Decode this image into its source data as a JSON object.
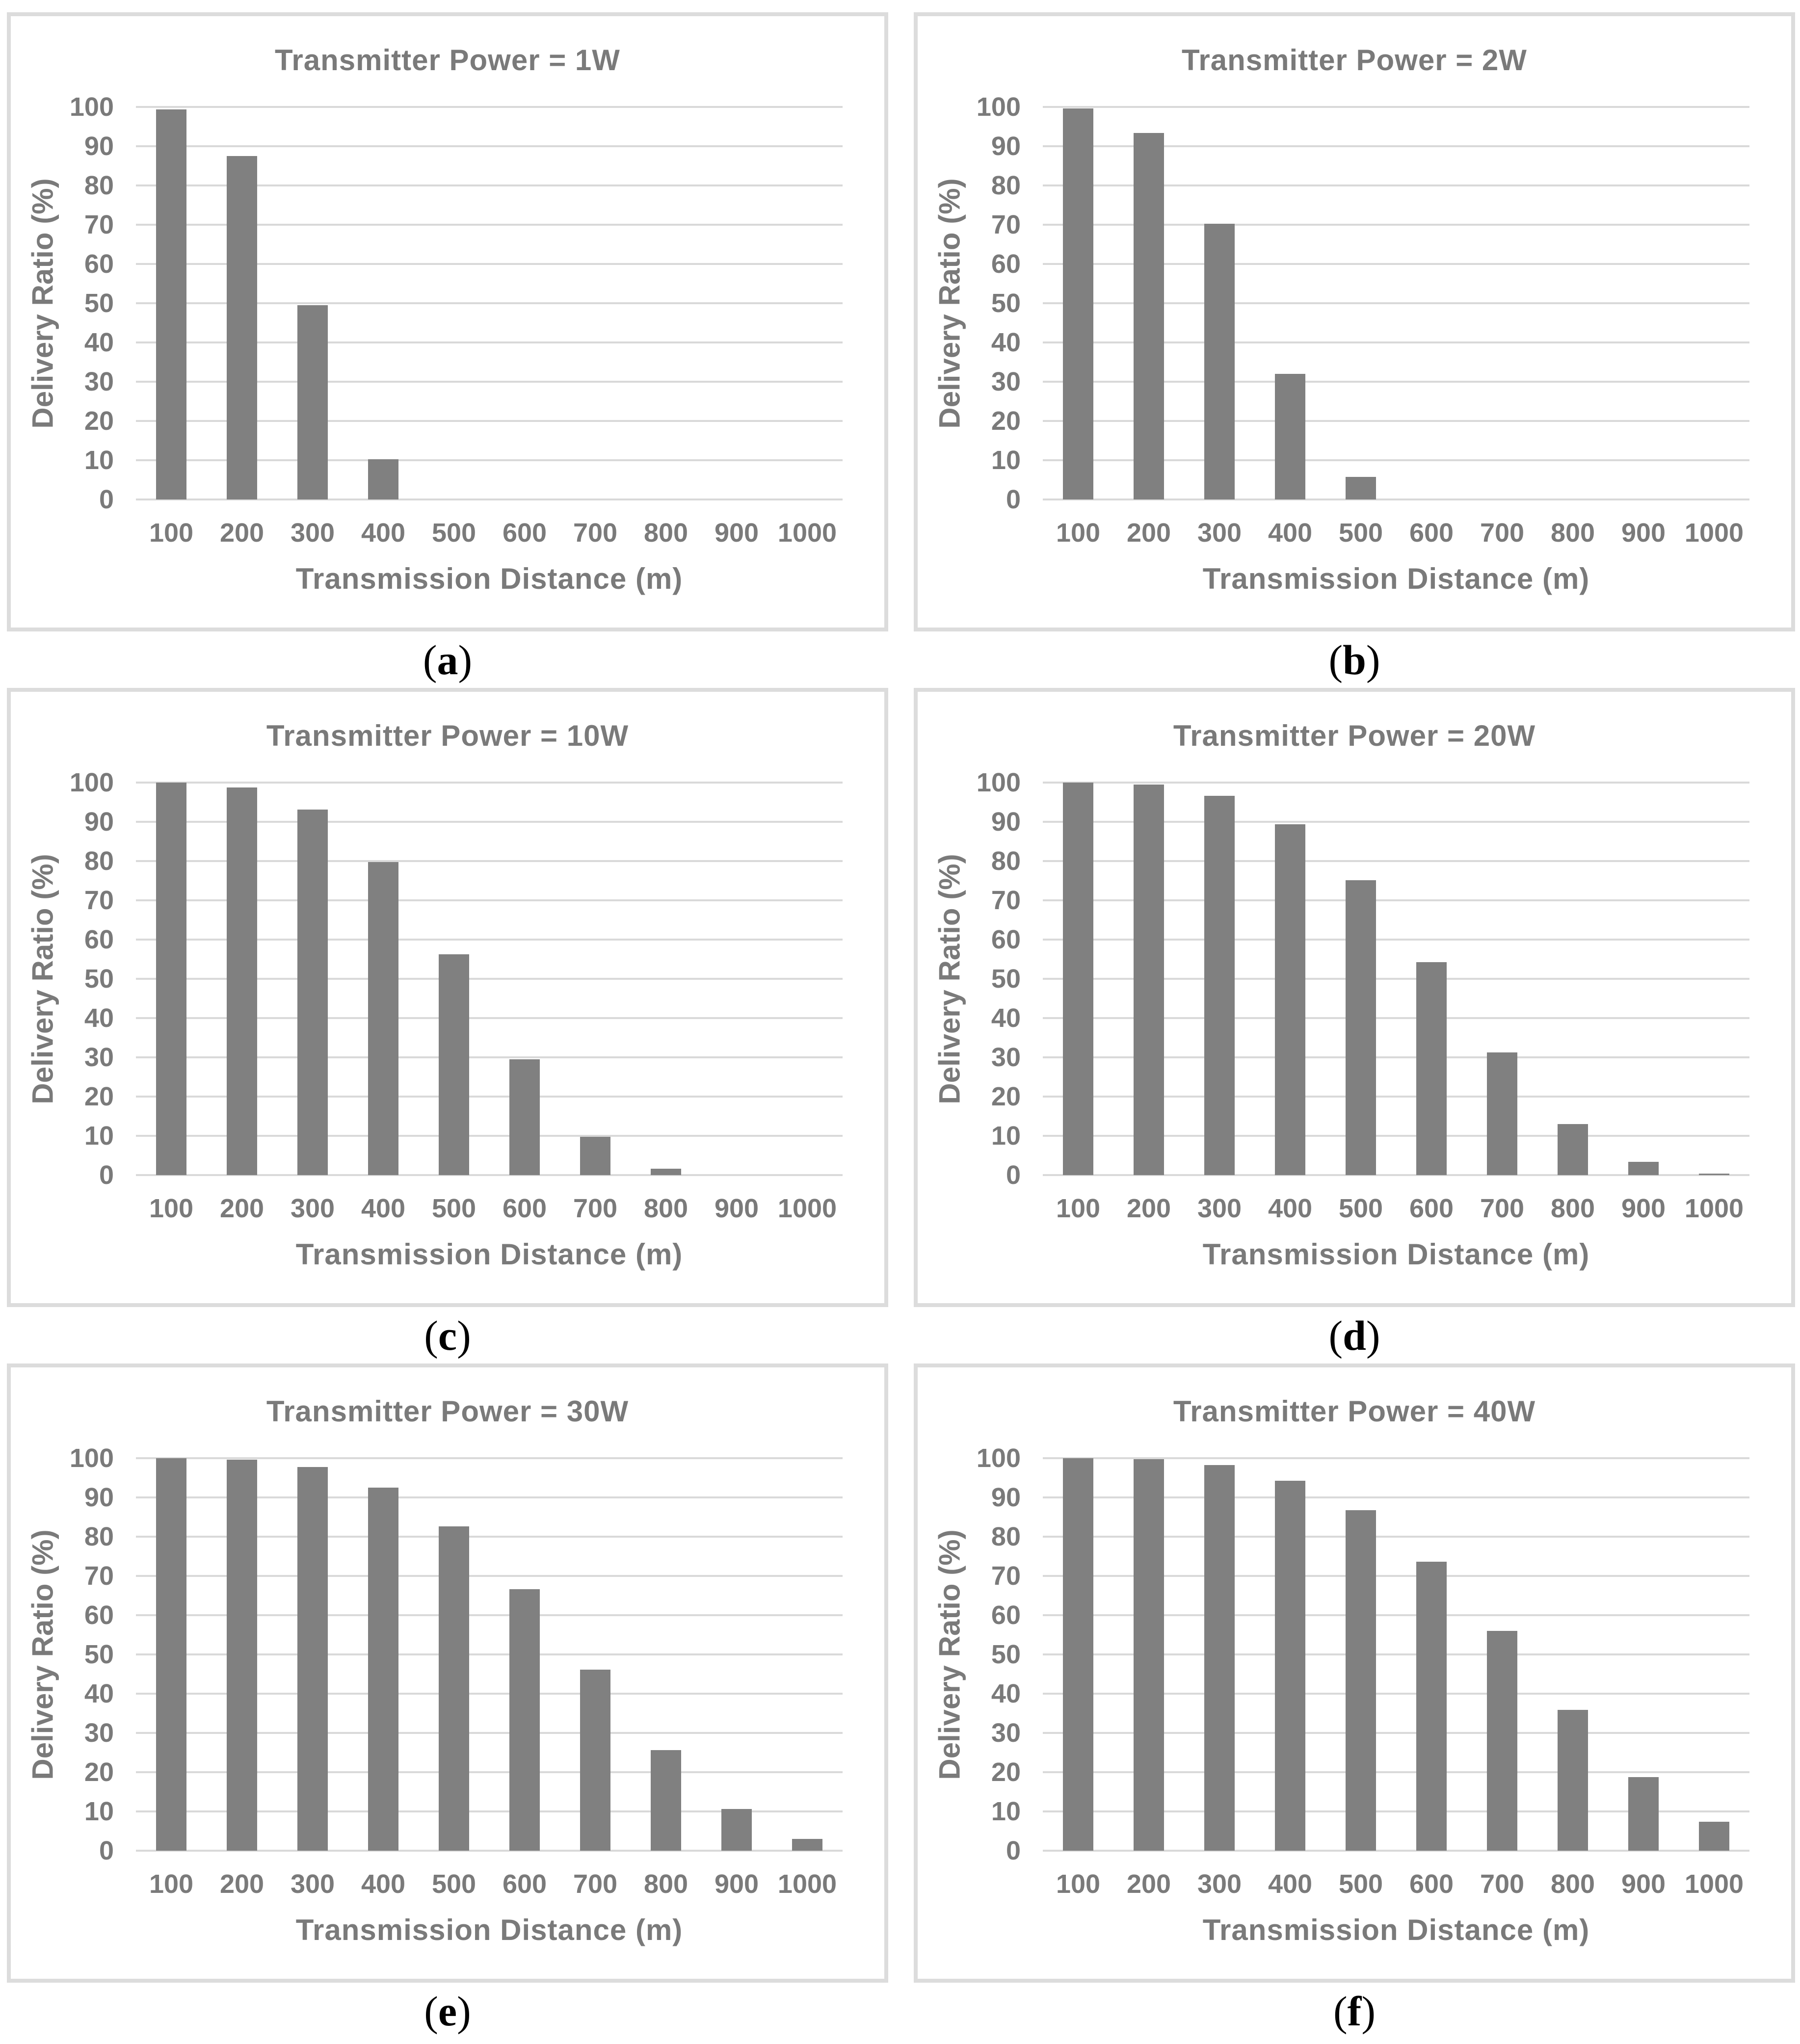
{
  "figure": {
    "caption_prefix": "(",
    "caption_suffix": ")",
    "colors": {
      "bar": "#808080",
      "gridline": "#d9d9d9",
      "axis_text": "#7a7a7a",
      "panel_border": "#dcdcdc",
      "caption_text": "#000000"
    }
  },
  "chart_data": [
    {
      "id": "a",
      "type": "bar",
      "title": "Transmitter Power = 1W",
      "xlabel": "Transmission Distance (m)",
      "ylabel": "Delivery Ratio (%)",
      "categories": [
        "100",
        "200",
        "300",
        "400",
        "500",
        "600",
        "700",
        "800",
        "900",
        "1000"
      ],
      "values": [
        99.4,
        87.5,
        49.5,
        10.2,
        0,
        0,
        0,
        0,
        0,
        0
      ],
      "ylim": [
        0,
        100
      ],
      "yticks": [
        0,
        10,
        20,
        30,
        40,
        50,
        60,
        70,
        80,
        90,
        100
      ],
      "grid": true,
      "legend": "none",
      "caption": "a"
    },
    {
      "id": "b",
      "type": "bar",
      "title": "Transmitter Power = 2W",
      "xlabel": "Transmission Distance (m)",
      "ylabel": "Delivery Ratio (%)",
      "categories": [
        "100",
        "200",
        "300",
        "400",
        "500",
        "600",
        "700",
        "800",
        "900",
        "1000"
      ],
      "values": [
        99.6,
        93.4,
        70.3,
        32.0,
        5.7,
        0,
        0,
        0,
        0,
        0
      ],
      "ylim": [
        0,
        100
      ],
      "yticks": [
        0,
        10,
        20,
        30,
        40,
        50,
        60,
        70,
        80,
        90,
        100
      ],
      "grid": true,
      "legend": "none",
      "caption": "b"
    },
    {
      "id": "c",
      "type": "bar",
      "title": "Transmitter Power = 10W",
      "xlabel": "Transmission Distance (m)",
      "ylabel": "Delivery Ratio (%)",
      "categories": [
        "100",
        "200",
        "300",
        "400",
        "500",
        "600",
        "700",
        "800",
        "900",
        "1000"
      ],
      "values": [
        100,
        98.8,
        93.1,
        79.7,
        56.3,
        29.5,
        9.7,
        1.6,
        0,
        0
      ],
      "ylim": [
        0,
        100
      ],
      "yticks": [
        0,
        10,
        20,
        30,
        40,
        50,
        60,
        70,
        80,
        90,
        100
      ],
      "grid": true,
      "legend": "none",
      "caption": "c"
    },
    {
      "id": "d",
      "type": "bar",
      "title": "Transmitter Power = 20W",
      "xlabel": "Transmission Distance (m)",
      "ylabel": "Delivery Ratio (%)",
      "categories": [
        "100",
        "200",
        "300",
        "400",
        "500",
        "600",
        "700",
        "800",
        "900",
        "1000"
      ],
      "values": [
        100,
        99.5,
        96.6,
        89.4,
        75.1,
        54.2,
        31.2,
        13.0,
        3.4,
        0.4
      ],
      "ylim": [
        0,
        100
      ],
      "yticks": [
        0,
        10,
        20,
        30,
        40,
        50,
        60,
        70,
        80,
        90,
        100
      ],
      "grid": true,
      "legend": "none",
      "caption": "d"
    },
    {
      "id": "e",
      "type": "bar",
      "title": "Transmitter Power = 30W",
      "xlabel": "Transmission Distance (m)",
      "ylabel": "Delivery Ratio (%)",
      "categories": [
        "100",
        "200",
        "300",
        "400",
        "500",
        "600",
        "700",
        "800",
        "900",
        "1000"
      ],
      "values": [
        100,
        99.6,
        97.7,
        92.5,
        82.6,
        66.6,
        46.1,
        25.6,
        10.6,
        3.0
      ],
      "ylim": [
        0,
        100
      ],
      "yticks": [
        0,
        10,
        20,
        30,
        40,
        50,
        60,
        70,
        80,
        90,
        100
      ],
      "grid": true,
      "legend": "none",
      "caption": "e"
    },
    {
      "id": "f",
      "type": "bar",
      "title": "Transmitter Power = 40W",
      "xlabel": "Transmission Distance (m)",
      "ylabel": "Delivery Ratio (%)",
      "categories": [
        "100",
        "200",
        "300",
        "400",
        "500",
        "600",
        "700",
        "800",
        "900",
        "1000"
      ],
      "values": [
        100,
        99.7,
        98.2,
        94.3,
        86.8,
        73.6,
        56.0,
        35.9,
        18.7,
        7.4
      ],
      "ylim": [
        0,
        100
      ],
      "yticks": [
        0,
        10,
        20,
        30,
        40,
        50,
        60,
        70,
        80,
        90,
        100
      ],
      "grid": true,
      "legend": "none",
      "caption": "f"
    }
  ]
}
